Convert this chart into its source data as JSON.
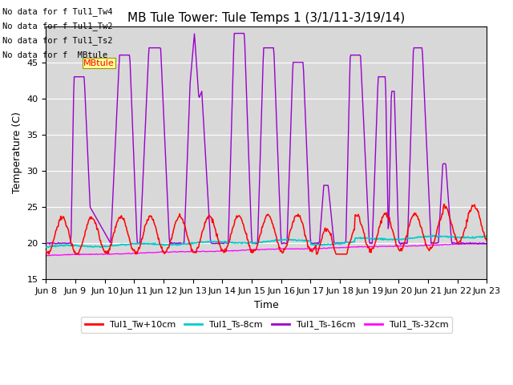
{
  "title": "MB Tule Tower: Tule Temps 1 (3/1/11-3/19/14)",
  "xlabel": "Time",
  "ylabel": "Temperature (C)",
  "ylim": [
    15,
    50
  ],
  "yticks": [
    15,
    20,
    25,
    30,
    35,
    40,
    45
  ],
  "x_labels": [
    "Jun 8",
    "Jun 9",
    "Jun 10",
    "Jun 11",
    "Jun 12",
    "Jun 13",
    "Jun 14",
    "Jun 15",
    "Jun 16",
    "Jun 17",
    "Jun 18",
    "Jun 19",
    "Jun 20",
    "Jun 21",
    "Jun 22",
    "Jun 23"
  ],
  "no_data_texts": [
    "No data for f Tul1_Tw4",
    "No data for f Tul1_Tw2",
    "No data for f Tul1_Ts2",
    "No data for f  MBtule"
  ],
  "legend_entries": [
    {
      "label": "Tul1_Tw+10cm",
      "color": "#ff0000"
    },
    {
      "label": "Tul1_Ts-8cm",
      "color": "#00cccc"
    },
    {
      "label": "Tul1_Ts-16cm",
      "color": "#9900cc"
    },
    {
      "label": "Tul1_Ts-32cm",
      "color": "#ff00ff"
    }
  ],
  "bg_color": "#ffffff",
  "plot_bg_color": "#d8d8d8",
  "grid_color": "#ffffff",
  "title_fontsize": 11,
  "axis_fontsize": 9,
  "tick_fontsize": 8,
  "n_days": 15
}
